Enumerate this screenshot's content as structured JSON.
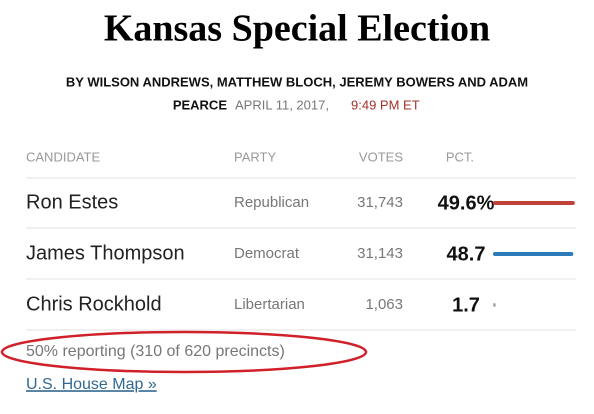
{
  "header": {
    "title": "Kansas Special Election",
    "byline_1": "BY WILSON ANDREWS, MATTHEW BLOCH, JEREMY BOWERS AND ADAM",
    "byline_2": "PEARCE",
    "date": "APRIL 11, 2017,",
    "time": "9:49 PM ET"
  },
  "table": {
    "columns": [
      "CANDIDATE",
      "PARTY",
      "VOTES",
      "PCT."
    ],
    "rows": [
      {
        "candidate": "Ron Estes",
        "party": "Republican",
        "votes": "31,743",
        "pct": {
          "value": 49.6,
          "label": "49.6%"
        },
        "color": "#c0403a"
      },
      {
        "candidate": "James Thompson",
        "party": "Democrat",
        "votes": "31,143",
        "pct": 48.7,
        "color": "#2b7bba"
      },
      {
        "candidate": "Chris Rockhold",
        "party": "Libertarian",
        "votes": "1,063",
        "pct": 1.7,
        "color": "#aaaaaa"
      }
    ]
  },
  "footer": {
    "reporting": "50% reporting (310 of 620 precincts)",
    "link": "U.S. House Map »"
  }
}
